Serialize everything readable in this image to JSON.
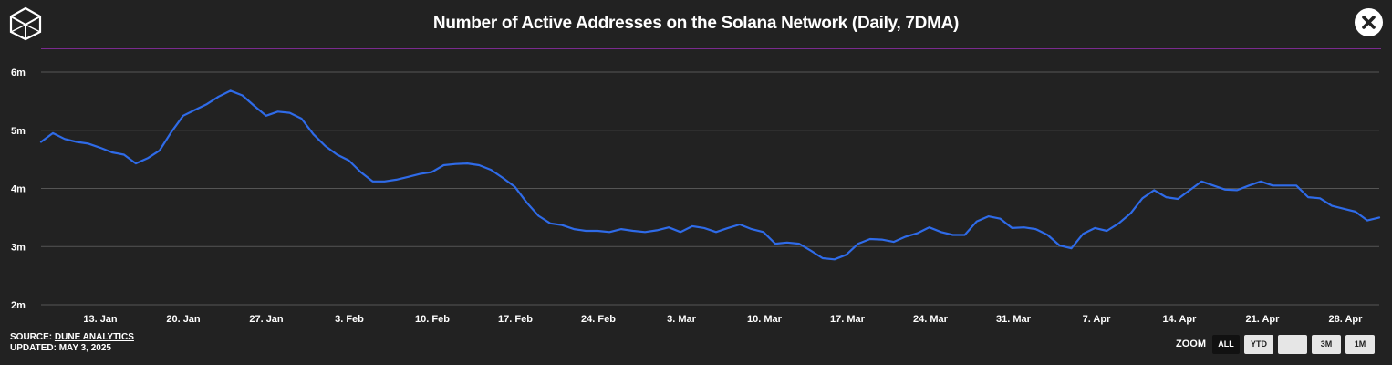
{
  "header": {
    "title": "Number of Active Addresses on the Solana Network (Daily, 7DMA)",
    "logo_icon": "cube-logo",
    "close_icon": "close-icon"
  },
  "footer": {
    "source_label": "SOURCE: ",
    "source_link": "DUNE ANALYTICS",
    "updated": "UPDATED: MAY 3, 2025"
  },
  "zoom": {
    "label": "ZOOM",
    "buttons": [
      "ALL",
      "YTD",
      "",
      "3M",
      "1M"
    ],
    "active": "ALL"
  },
  "colors": {
    "background": "#222222",
    "line": "#2f6be8",
    "grid": "#555555",
    "title_rule": "#7a2b8f"
  },
  "chart_data": {
    "type": "line",
    "title": "Number of Active Addresses on the Solana Network (Daily, 7DMA)",
    "xlabel": "",
    "ylabel": "",
    "y_unit": "million active addresses",
    "ylim": [
      2,
      6
    ],
    "y_ticks": [
      2,
      3,
      4,
      5,
      6
    ],
    "y_tick_labels": [
      "2m",
      "3m",
      "4m",
      "5m",
      "6m"
    ],
    "x_ticks": [
      "13. Jan",
      "20. Jan",
      "27. Jan",
      "3. Feb",
      "10. Feb",
      "17. Feb",
      "24. Feb",
      "3. Mar",
      "10. Mar",
      "17. Mar",
      "24. Mar",
      "31. Mar",
      "7. Apr",
      "14. Apr",
      "21. Apr",
      "28. Apr"
    ],
    "x_start": "8. Jan",
    "x_end": "3. May",
    "grid": true,
    "legend": "none",
    "series": [
      {
        "values": [
          4.8,
          4.95,
          4.85,
          4.8,
          4.77,
          4.7,
          4.62,
          4.58,
          4.43,
          4.52,
          4.65,
          4.97,
          5.25,
          5.35,
          5.45,
          5.58,
          5.68,
          5.6,
          5.42,
          5.25,
          5.32,
          5.3,
          5.2,
          4.93,
          4.73,
          4.58,
          4.48,
          4.28,
          4.12,
          4.12,
          4.15,
          4.2,
          4.25,
          4.28,
          4.4,
          4.42,
          4.43,
          4.4,
          4.32,
          4.18,
          4.03,
          3.76,
          3.53,
          3.4,
          3.37,
          3.3,
          3.27,
          3.27,
          3.25,
          3.3,
          3.27,
          3.25,
          3.28,
          3.33,
          3.25,
          3.35,
          3.32,
          3.25,
          3.32,
          3.38,
          3.3,
          3.25,
          3.05,
          3.07,
          3.05,
          2.93,
          2.8,
          2.78,
          2.86,
          3.05,
          3.13,
          3.12,
          3.08,
          3.17,
          3.23,
          3.33,
          3.25,
          3.2,
          3.2,
          3.43,
          3.52,
          3.48,
          3.32,
          3.33,
          3.3,
          3.2,
          3.02,
          2.97,
          3.22,
          3.32,
          3.27,
          3.4,
          3.57,
          3.83,
          3.97,
          3.85,
          3.82,
          3.97,
          4.12,
          4.05,
          3.98,
          3.97,
          4.05,
          4.12,
          4.05,
          4.05,
          4.05,
          3.85,
          3.83,
          3.7,
          3.65,
          3.6,
          3.45,
          3.5
        ]
      }
    ]
  }
}
